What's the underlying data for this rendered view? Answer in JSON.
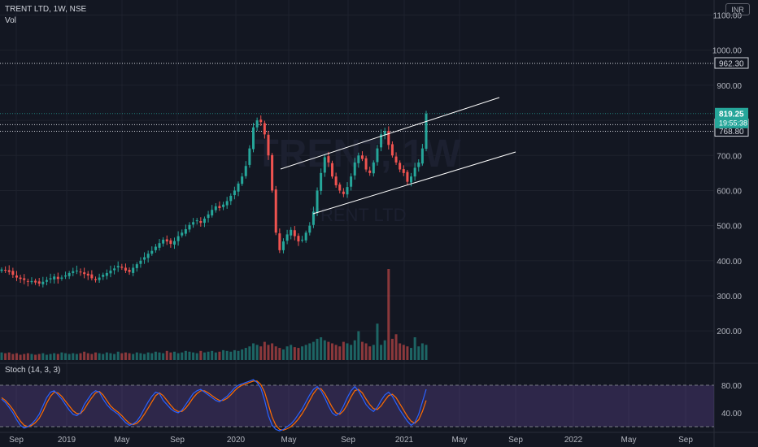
{
  "header": {
    "symbol_title": "TRENT LTD, 1W, NSE",
    "volume_label": "Vol",
    "currency": "INR"
  },
  "indicator": {
    "label": "Stoch (14, 3, 3)",
    "ticks": [
      "80.00",
      "40.00"
    ],
    "upper_band": 80,
    "lower_band": 20
  },
  "price_badges": {
    "last": {
      "price": "819.25",
      "countdown": "19:55:38",
      "color": "#26a69a"
    },
    "lines": [
      "962.30",
      "787.70",
      "768.80"
    ]
  },
  "chart_data": {
    "type": "candlestick",
    "title": "TRENT LTD, 1W, NSE",
    "y_ticks": [
      "1100.00",
      "1000.00",
      "900.00",
      "800.00",
      "700.00",
      "600.00",
      "500.00",
      "400.00",
      "300.00",
      "200.00"
    ],
    "ylim": [
      130,
      1150
    ],
    "x_ticks": [
      "Sep",
      "2019",
      "May",
      "Sep",
      "2020",
      "May",
      "Sep",
      "2021",
      "May",
      "Sep",
      "2022",
      "May",
      "Sep"
    ],
    "horizontal_levels": [
      962.3,
      787.7,
      768.8
    ],
    "up_color": "#26a69a",
    "down_color": "#ef5350",
    "price_series_weekly_close": [
      375,
      372,
      368,
      360,
      352,
      348,
      345,
      340,
      342,
      338,
      335,
      340,
      345,
      350,
      355,
      348,
      352,
      358,
      365,
      370,
      372,
      368,
      362,
      358,
      350,
      345,
      352,
      360,
      365,
      372,
      378,
      385,
      380,
      372,
      368,
      380,
      390,
      400,
      410,
      420,
      428,
      440,
      450,
      460,
      455,
      448,
      456,
      470,
      480,
      490,
      502,
      510,
      515,
      508,
      520,
      532,
      545,
      555,
      550,
      560,
      570,
      585,
      600,
      620,
      640,
      670,
      720,
      780,
      800,
      795,
      760,
      700,
      600,
      480,
      430,
      455,
      475,
      488,
      470,
      455,
      460,
      480,
      500,
      540,
      600,
      650,
      695,
      680,
      640,
      615,
      600,
      590,
      610,
      640,
      680,
      700,
      690,
      660,
      650,
      680,
      720,
      760,
      770,
      730,
      700,
      680,
      660,
      650,
      625,
      640,
      665,
      680,
      720,
      819
    ],
    "volume": [
      10,
      9,
      10,
      8,
      9,
      7,
      8,
      9,
      8,
      7,
      8,
      9,
      7,
      8,
      9,
      8,
      10,
      9,
      8,
      9,
      8,
      9,
      11,
      9,
      8,
      10,
      9,
      8,
      10,
      9,
      8,
      11,
      9,
      10,
      9,
      8,
      10,
      9,
      8,
      10,
      9,
      11,
      10,
      9,
      12,
      10,
      11,
      9,
      10,
      12,
      11,
      10,
      9,
      12,
      10,
      11,
      12,
      10,
      11,
      13,
      12,
      11,
      13,
      12,
      14,
      16,
      18,
      22,
      20,
      18,
      24,
      20,
      22,
      18,
      16,
      14,
      18,
      20,
      17,
      16,
      18,
      20,
      22,
      24,
      28,
      30,
      26,
      24,
      22,
      20,
      18,
      24,
      22,
      20,
      26,
      38,
      24,
      22,
      18,
      20,
      48,
      20,
      26,
      120,
      28,
      34,
      22,
      20,
      18,
      16,
      30,
      18,
      22,
      20
    ],
    "stochastic_k": [
      60,
      55,
      48,
      40,
      30,
      22,
      18,
      20,
      24,
      30,
      38,
      50,
      62,
      70,
      72,
      66,
      60,
      52,
      44,
      38,
      36,
      40,
      52,
      60,
      68,
      72,
      70,
      60,
      52,
      46,
      42,
      38,
      32,
      26,
      22,
      24,
      28,
      36,
      46,
      56,
      64,
      70,
      68,
      58,
      52,
      46,
      42,
      40,
      44,
      52,
      60,
      68,
      72,
      74,
      70,
      66,
      62,
      58,
      56,
      60,
      64,
      70,
      76,
      80,
      82,
      84,
      86,
      88,
      84,
      76,
      58,
      36,
      22,
      16,
      14,
      16,
      20,
      24,
      30,
      38,
      46,
      56,
      66,
      74,
      78,
      72,
      62,
      50,
      40,
      36,
      40,
      50,
      62,
      72,
      78,
      72,
      62,
      52,
      46,
      42,
      48,
      58,
      66,
      70,
      64,
      54,
      44,
      36,
      28,
      22,
      26,
      38,
      56,
      74
    ],
    "stochastic_d": [
      62,
      58,
      52,
      45,
      36,
      28,
      22,
      20,
      22,
      26,
      32,
      42,
      54,
      64,
      70,
      69,
      64,
      57,
      50,
      43,
      39,
      39,
      45,
      54,
      62,
      69,
      71,
      66,
      58,
      50,
      45,
      41,
      36,
      30,
      25,
      23,
      25,
      30,
      38,
      47,
      56,
      65,
      69,
      65,
      58,
      51,
      45,
      42,
      42,
      47,
      54,
      62,
      68,
      72,
      72,
      69,
      65,
      61,
      58,
      58,
      61,
      66,
      72,
      77,
      80,
      82,
      84,
      86,
      86,
      81,
      70,
      52,
      34,
      22,
      16,
      15,
      17,
      20,
      25,
      31,
      39,
      48,
      58,
      68,
      75,
      75,
      68,
      58,
      48,
      40,
      38,
      43,
      52,
      63,
      72,
      74,
      69,
      60,
      52,
      46,
      45,
      50,
      58,
      65,
      67,
      62,
      53,
      44,
      35,
      28,
      25,
      30,
      42,
      58
    ],
    "trend_lines": [
      {
        "from": [
          "2020-05",
          665
        ],
        "to": [
          "2021-06",
          860
        ]
      },
      {
        "from": [
          "2020-05",
          540
        ],
        "to": [
          "2021-06",
          705
        ]
      }
    ]
  }
}
